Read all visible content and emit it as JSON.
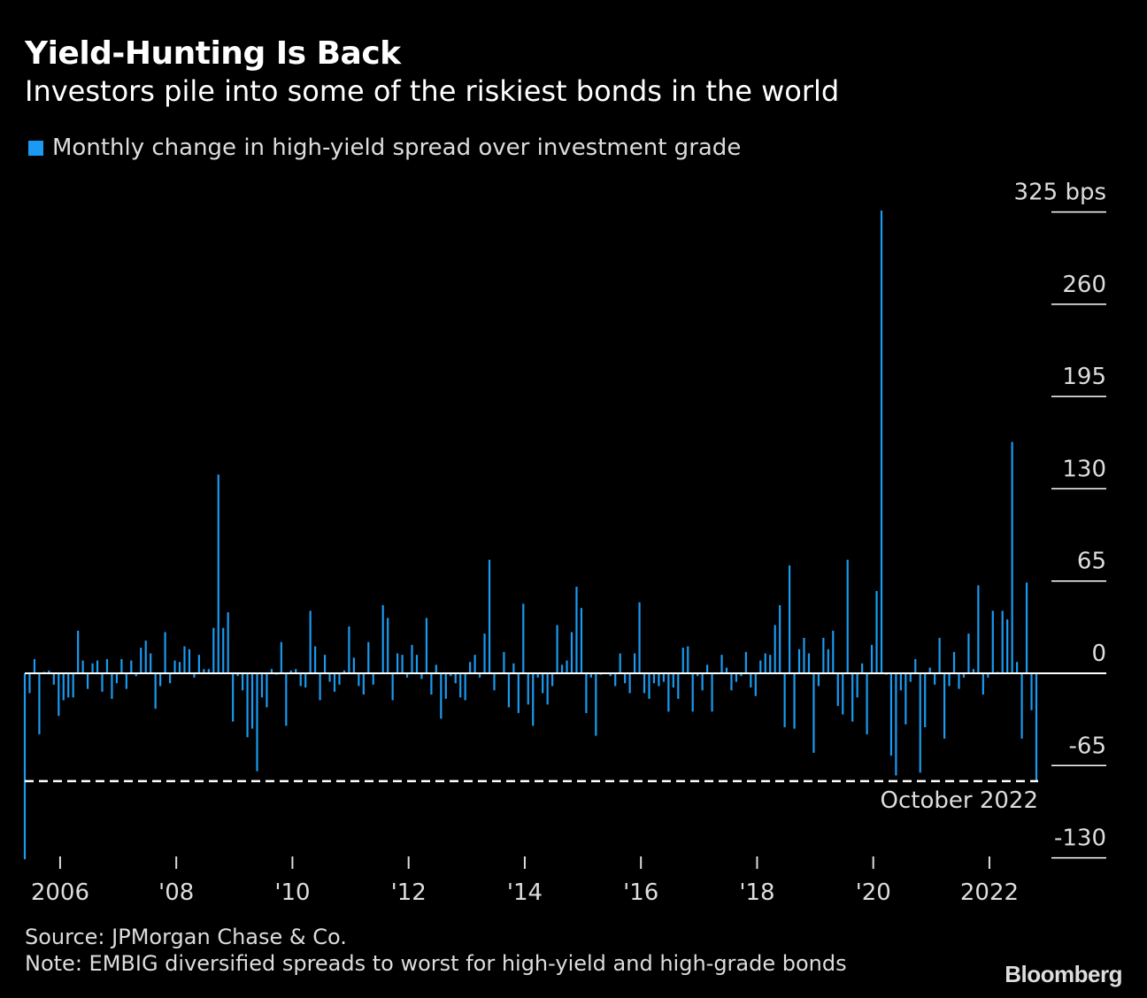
{
  "header": {
    "title": "Yield-Hunting Is Back",
    "subtitle": "Investors pile into some of the riskiest bonds in the world"
  },
  "chart_data": {
    "type": "bar",
    "title": "Yield-Hunting Is Back",
    "subtitle": "Investors pile into some of the riskiest bonds in the world",
    "legend": {
      "position": "top-left",
      "entries": [
        "Monthly change in high-yield spread over investment grade"
      ]
    },
    "series": [
      {
        "name": "Monthly change in high-yield spread over investment grade",
        "color": "#1a9af0",
        "values": [
          -131,
          -14,
          10,
          -43,
          1,
          2,
          -8,
          -30,
          -19,
          -17,
          -17,
          30,
          9,
          -11,
          7,
          9,
          -13,
          10,
          -18,
          -7,
          10,
          -11,
          9,
          -2,
          18,
          23,
          14,
          -25,
          -9,
          29,
          -7,
          9,
          8,
          19,
          17,
          -3,
          13,
          3,
          3,
          32,
          140,
          32,
          43,
          -34,
          -2,
          -12,
          -45,
          -39,
          -69,
          -17,
          -24,
          3,
          -1,
          22,
          -37,
          2,
          3,
          -9,
          -10,
          44,
          19,
          -19,
          13,
          -6,
          -13,
          -8,
          2,
          33,
          11,
          -9,
          -15,
          22,
          -8,
          0,
          48,
          39,
          -19,
          14,
          13,
          -3,
          20,
          13,
          -4,
          39,
          -15,
          6,
          -32,
          -18,
          -2,
          -7,
          -17,
          -19,
          8,
          13,
          -3,
          28,
          80,
          -12,
          0,
          15,
          -24,
          7,
          -28,
          49,
          -22,
          -37,
          -3,
          -14,
          -22,
          -9,
          34,
          6,
          9,
          29,
          61,
          46,
          -28,
          -3,
          -44,
          -1,
          0,
          -2,
          -9,
          14,
          -7,
          -14,
          14,
          50,
          -14,
          -18,
          -7,
          -9,
          -6,
          -27,
          -10,
          -18,
          18,
          19,
          -27,
          -2,
          -12,
          6,
          -27,
          0,
          13,
          4,
          -12,
          -6,
          -2,
          15,
          -10,
          -16,
          9,
          14,
          13,
          34,
          48,
          -38,
          76,
          -39,
          17,
          25,
          14,
          -56,
          -9,
          25,
          17,
          30,
          -23,
          -29,
          80,
          -34,
          -17,
          7,
          -43,
          20,
          58,
          326,
          -1,
          -58,
          -72,
          -12,
          -36,
          -6,
          10,
          -70,
          -38,
          4,
          -8,
          25,
          -46,
          -9,
          15,
          -11,
          -3,
          28,
          3,
          62,
          -15,
          -3,
          44,
          1,
          44,
          38,
          163,
          8,
          -46,
          64,
          -26,
          -76
        ]
      }
    ],
    "x_tick_labels": [
      "2006",
      "'08",
      "'10",
      "'12",
      "'14",
      "'16",
      "'18",
      "'20",
      "2022"
    ],
    "y_ticks": [
      325,
      260,
      195,
      130,
      65,
      0,
      -65,
      -130
    ],
    "y_tick_labels": [
      "325 bps",
      "260",
      "195",
      "130",
      "65",
      "0",
      "-65",
      "-130"
    ],
    "ylim": [
      -130,
      325
    ],
    "reference_line": {
      "value": -76,
      "label": "October 2022",
      "style": "dashed"
    },
    "grid": false
  },
  "footer": {
    "source": "Source: JPMorgan Chase & Co.",
    "note": "Note: EMBIG diversified spreads to worst for high-yield and high-grade bonds",
    "logo": "Bloomberg"
  }
}
